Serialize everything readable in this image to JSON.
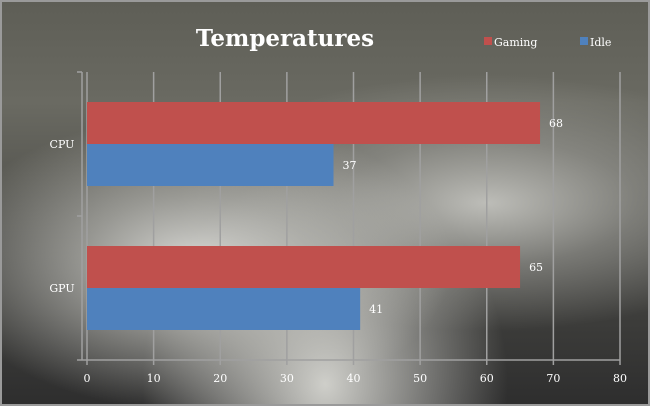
{
  "chart_data": {
    "type": "bar",
    "orientation": "horizontal",
    "title": "Temperatures",
    "categories": [
      "CPU",
      "GPU"
    ],
    "series": [
      {
        "name": "Gaming",
        "values": [
          68,
          65
        ],
        "color": "#c0504d"
      },
      {
        "name": "Idle",
        "values": [
          37,
          41
        ],
        "color": "#4f81bd"
      }
    ],
    "xlim": [
      0,
      80
    ],
    "xticks": [
      0,
      10,
      20,
      30,
      40,
      50,
      60,
      70,
      80
    ],
    "grid": true,
    "legend": "top-right",
    "data_labels": true
  }
}
